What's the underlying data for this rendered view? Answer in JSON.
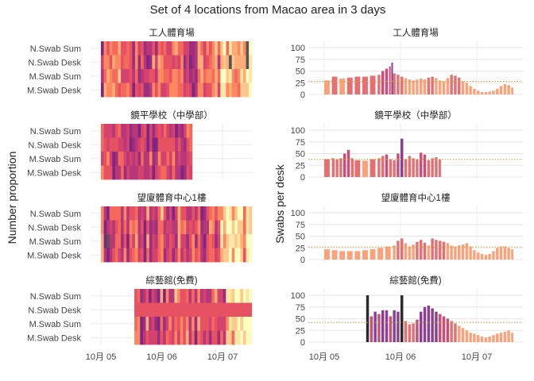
{
  "title": "Set of 4 locations from Macao area in 3 days",
  "chart_data": [
    {
      "type": "heatmap",
      "ylabel": "Number proportion",
      "rows": [
        "N.Swab Sum",
        "N.Swab Desk",
        "M.Swab Sum",
        "M.Swab Desk"
      ],
      "x_ticks": [
        "10月 05",
        "10月 06",
        "10月 07"
      ],
      "panels": [
        {
          "name": "工人體育場",
          "start": 0.0,
          "end": 2.48
        },
        {
          "name": "鏡平學校（中學部）",
          "start": 0.0,
          "end": 1.5
        },
        {
          "name": "望廈體育中心1樓",
          "start": 0.0,
          "end": 2.48
        },
        {
          "name": "綜藝館(免費)",
          "start": 0.55,
          "end": 2.48
        }
      ]
    },
    {
      "type": "bar",
      "ylabel": "Swabs per desk",
      "ylim": [
        0,
        100
      ],
      "y_ticks": [
        "0",
        "25",
        "50",
        "75",
        "100"
      ],
      "x_ticks": [
        "10月 05",
        "10月 06",
        "10月 07"
      ],
      "grid": true,
      "panels": [
        {
          "name": "工人體育場",
          "reference_line": 28,
          "points": [
            [
              0.0,
              30
            ],
            [
              0.1,
              38
            ],
            [
              0.2,
              34
            ],
            [
              0.3,
              36
            ],
            [
              0.4,
              38
            ],
            [
              0.5,
              38
            ],
            [
              0.6,
              40
            ],
            [
              0.7,
              42
            ],
            [
              0.75,
              50
            ],
            [
              0.8,
              55
            ],
            [
              0.85,
              60
            ],
            [
              0.88,
              68
            ],
            [
              0.9,
              45
            ],
            [
              0.95,
              42
            ],
            [
              1.0,
              38
            ],
            [
              1.05,
              35
            ],
            [
              1.1,
              32
            ],
            [
              1.15,
              30
            ],
            [
              1.2,
              32
            ],
            [
              1.25,
              34
            ],
            [
              1.3,
              32
            ],
            [
              1.35,
              36
            ],
            [
              1.4,
              38
            ],
            [
              1.45,
              35
            ],
            [
              1.5,
              30
            ],
            [
              1.55,
              28
            ],
            [
              1.6,
              35
            ],
            [
              1.65,
              42
            ],
            [
              1.7,
              40
            ],
            [
              1.75,
              36
            ],
            [
              1.8,
              28
            ],
            [
              1.85,
              25
            ],
            [
              1.9,
              18
            ],
            [
              1.95,
              12
            ],
            [
              2.0,
              8
            ],
            [
              2.05,
              5
            ],
            [
              2.1,
              5
            ],
            [
              2.15,
              6
            ],
            [
              2.2,
              8
            ],
            [
              2.25,
              12
            ],
            [
              2.3,
              18
            ],
            [
              2.35,
              22
            ],
            [
              2.4,
              20
            ],
            [
              2.45,
              15
            ]
          ]
        },
        {
          "name": "鏡平學校（中學部）",
          "reference_line": 38,
          "points": [
            [
              0.0,
              38
            ],
            [
              0.1,
              40
            ],
            [
              0.15,
              38
            ],
            [
              0.2,
              40
            ],
            [
              0.25,
              50
            ],
            [
              0.3,
              58
            ],
            [
              0.35,
              40
            ],
            [
              0.4,
              36
            ],
            [
              0.5,
              35
            ],
            [
              0.6,
              38
            ],
            [
              0.7,
              40
            ],
            [
              0.75,
              45
            ],
            [
              0.8,
              48
            ],
            [
              0.85,
              38
            ],
            [
              0.9,
              36
            ],
            [
              0.95,
              50
            ],
            [
              1.0,
              82
            ],
            [
              1.05,
              38
            ],
            [
              1.1,
              45
            ],
            [
              1.15,
              40
            ],
            [
              1.2,
              38
            ],
            [
              1.25,
              52
            ],
            [
              1.3,
              48
            ],
            [
              1.35,
              36
            ],
            [
              1.4,
              40
            ],
            [
              1.45,
              42
            ],
            [
              1.5,
              38
            ]
          ]
        },
        {
          "name": "望廈體育中心1樓",
          "reference_line": 27,
          "points": [
            [
              0.0,
              22
            ],
            [
              0.1,
              20
            ],
            [
              0.2,
              18
            ],
            [
              0.3,
              18
            ],
            [
              0.4,
              18
            ],
            [
              0.5,
              20
            ],
            [
              0.6,
              22
            ],
            [
              0.7,
              25
            ],
            [
              0.8,
              28
            ],
            [
              0.9,
              30
            ],
            [
              0.95,
              40
            ],
            [
              1.0,
              45
            ],
            [
              1.05,
              35
            ],
            [
              1.1,
              28
            ],
            [
              1.15,
              32
            ],
            [
              1.2,
              38
            ],
            [
              1.25,
              42
            ],
            [
              1.3,
              36
            ],
            [
              1.35,
              30
            ],
            [
              1.4,
              45
            ],
            [
              1.45,
              42
            ],
            [
              1.5,
              40
            ],
            [
              1.55,
              38
            ],
            [
              1.6,
              35
            ],
            [
              1.65,
              30
            ],
            [
              1.7,
              28
            ],
            [
              1.75,
              30
            ],
            [
              1.8,
              32
            ],
            [
              1.85,
              35
            ],
            [
              1.9,
              28
            ],
            [
              1.95,
              20
            ],
            [
              2.0,
              15
            ],
            [
              2.05,
              12
            ],
            [
              2.1,
              10
            ],
            [
              2.15,
              12
            ],
            [
              2.2,
              18
            ],
            [
              2.25,
              25
            ],
            [
              2.3,
              28
            ],
            [
              2.35,
              28
            ],
            [
              2.4,
              25
            ],
            [
              2.45,
              22
            ]
          ]
        },
        {
          "name": "綜藝館(免費)",
          "reference_line": 42,
          "points": [
            [
              0.55,
              100
            ],
            [
              0.6,
              55
            ],
            [
              0.65,
              65
            ],
            [
              0.7,
              60
            ],
            [
              0.75,
              68
            ],
            [
              0.8,
              68
            ],
            [
              0.85,
              55
            ],
            [
              0.9,
              68
            ],
            [
              0.95,
              65
            ],
            [
              1.0,
              100
            ],
            [
              1.05,
              45
            ],
            [
              1.1,
              38
            ],
            [
              1.15,
              40
            ],
            [
              1.2,
              48
            ],
            [
              1.25,
              65
            ],
            [
              1.3,
              75
            ],
            [
              1.35,
              78
            ],
            [
              1.4,
              72
            ],
            [
              1.45,
              65
            ],
            [
              1.5,
              60
            ],
            [
              1.55,
              55
            ],
            [
              1.6,
              50
            ],
            [
              1.65,
              45
            ],
            [
              1.7,
              40
            ],
            [
              1.75,
              35
            ],
            [
              1.8,
              30
            ],
            [
              1.85,
              25
            ],
            [
              1.9,
              20
            ],
            [
              1.95,
              18
            ],
            [
              2.0,
              15
            ],
            [
              2.05,
              12
            ],
            [
              2.1,
              10
            ],
            [
              2.15,
              12
            ],
            [
              2.2,
              15
            ],
            [
              2.25,
              18
            ],
            [
              2.3,
              20
            ],
            [
              2.35,
              22
            ],
            [
              2.4,
              25
            ],
            [
              2.45,
              20
            ]
          ]
        }
      ]
    }
  ]
}
